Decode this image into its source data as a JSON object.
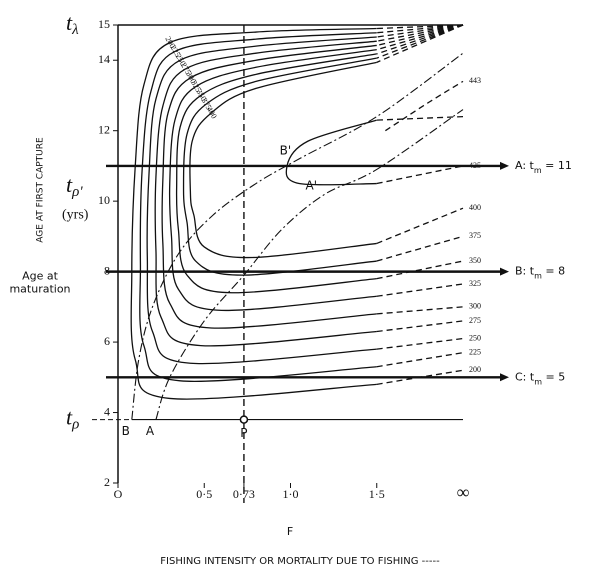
{
  "chart_data": {
    "type": "contour",
    "title": "FISHING INTENSITY OR MORTALITY DUE TO FISHING -----",
    "xlabel": "F",
    "ylabel": "AGE AT FIRST CAPTURE",
    "xlim": [
      0,
      2
    ],
    "ylim": [
      2,
      15
    ],
    "xticks": [
      {
        "value": 0,
        "label": "O"
      },
      {
        "value": 0.5,
        "label": "0·5"
      },
      {
        "value": 0.73,
        "label": "0·73"
      },
      {
        "value": 1.0,
        "label": "1·0"
      },
      {
        "value": 1.5,
        "label": "1·5"
      }
    ],
    "x_end_label": "∞",
    "yticks": [
      2,
      4,
      6,
      8,
      10,
      12,
      14,
      15
    ],
    "dashed_from": 1.5,
    "color": "#111111",
    "contours": [
      {
        "level": 200,
        "x": [
          2,
          1.5,
          0.8,
          0.3,
          0.15,
          0.1,
          0.08,
          0.1,
          0.3,
          1.5,
          2
        ],
        "y": [
          15,
          14.9,
          14.8,
          14.5,
          13.3,
          11,
          8,
          5.5,
          4.4,
          4.8,
          5.2
        ]
      },
      {
        "level": 225,
        "x": [
          2,
          1.5,
          0.8,
          0.33,
          0.19,
          0.14,
          0.13,
          0.15,
          0.36,
          1.5,
          2
        ],
        "y": [
          15,
          14.78,
          14.6,
          14.25,
          13.1,
          10.9,
          8.2,
          5.9,
          4.9,
          5.3,
          5.7
        ]
      },
      {
        "level": 250,
        "x": [
          2,
          1.5,
          0.8,
          0.36,
          0.22,
          0.18,
          0.17,
          0.2,
          0.42,
          1.5,
          2
        ],
        "y": [
          15,
          14.66,
          14.4,
          14,
          12.9,
          10.8,
          8.4,
          6.3,
          5.4,
          5.8,
          6.1
        ]
      },
      {
        "level": 275,
        "x": [
          2,
          1.5,
          0.8,
          0.39,
          0.26,
          0.22,
          0.22,
          0.25,
          0.48,
          1.5,
          2
        ],
        "y": [
          15,
          14.54,
          14.2,
          13.75,
          12.7,
          10.7,
          8.6,
          6.7,
          5.9,
          6.3,
          6.6
        ]
      },
      {
        "level": 300,
        "x": [
          2,
          1.5,
          0.8,
          0.42,
          0.29,
          0.26,
          0.26,
          0.3,
          0.54,
          1.5,
          2
        ],
        "y": [
          15,
          14.42,
          14,
          13.5,
          12.5,
          10.6,
          8.8,
          7.1,
          6.4,
          6.8,
          7.0
        ]
      },
      {
        "level": 325,
        "x": [
          2,
          1.5,
          0.8,
          0.45,
          0.33,
          0.3,
          0.31,
          0.35,
          0.6,
          1.5,
          2
        ],
        "y": [
          15,
          14.3,
          13.8,
          13.25,
          12.3,
          10.5,
          9,
          7.5,
          6.9,
          7.3,
          7.65
        ]
      },
      {
        "level": 350,
        "x": [
          2,
          1.5,
          0.8,
          0.48,
          0.36,
          0.34,
          0.35,
          0.4,
          0.66,
          1.5,
          2
        ],
        "y": [
          15,
          14.18,
          13.6,
          13,
          12.1,
          10.4,
          9.2,
          7.9,
          7.4,
          7.8,
          8.3
        ]
      },
      {
        "level": 375,
        "x": [
          2,
          1.5,
          0.8,
          0.51,
          0.4,
          0.38,
          0.4,
          0.45,
          0.72,
          1.5,
          2
        ],
        "y": [
          15,
          14.06,
          13.4,
          12.75,
          11.9,
          10.3,
          9.4,
          8.3,
          7.9,
          8.3,
          9.0
        ]
      },
      {
        "level": 400,
        "x": [
          2,
          1.5,
          0.8,
          0.54,
          0.43,
          0.42,
          0.44,
          0.5,
          0.78,
          1.5,
          2
        ],
        "y": [
          15,
          13.94,
          13.2,
          12.5,
          11.7,
          10.2,
          9.6,
          8.7,
          8.4,
          8.8,
          9.8
        ]
      },
      {
        "level": 425,
        "x": [
          2,
          1.5,
          1.1,
          0.98,
          1.05,
          1.5,
          2
        ],
        "y": [
          12.4,
          12.3,
          11.7,
          11,
          10.5,
          10.5,
          11
        ]
      },
      {
        "level": 443,
        "x": [
          1.55,
          1.8,
          2
        ],
        "y": [
          12.0,
          12.8,
          13.4
        ]
      }
    ],
    "eumetric_curves": [
      {
        "name": "A",
        "end_label": "A'",
        "x": [
          0.22,
          0.3,
          0.5,
          0.73,
          0.95,
          1.2,
          1.5,
          2
        ],
        "y": [
          3.8,
          5,
          6.6,
          7.9,
          9.2,
          10.2,
          10.9,
          12.6
        ]
      },
      {
        "name": "B",
        "end_label": "B'",
        "x": [
          0.08,
          0.12,
          0.2,
          0.35,
          0.55,
          0.8,
          1.05,
          1.5,
          2
        ],
        "y": [
          3.8,
          5.5,
          7,
          8.5,
          9.6,
          10.5,
          11.2,
          12.4,
          14.2
        ]
      }
    ],
    "reference_lines": [
      {
        "y": 11,
        "prefix": "A: t",
        "sub": "m",
        "suffix": " = 11"
      },
      {
        "y": 8,
        "prefix": "B: t",
        "sub": "m",
        "suffix": " = 8"
      },
      {
        "y": 5,
        "prefix": "C: t",
        "sub": "m",
        "suffix": " = 5"
      }
    ],
    "point": {
      "label": "P",
      "x": 0.73,
      "y": 3.8
    },
    "age_marks": [
      {
        "main": "t",
        "sub": "λ",
        "y": 15
      },
      {
        "main": "t",
        "sub": "ρ'",
        "y": 10.4,
        "note": "(yrs)"
      },
      {
        "main": "t",
        "sub": "ρ",
        "y": 3.8
      }
    ],
    "maturation_label": [
      "Age at",
      "maturation"
    ]
  }
}
